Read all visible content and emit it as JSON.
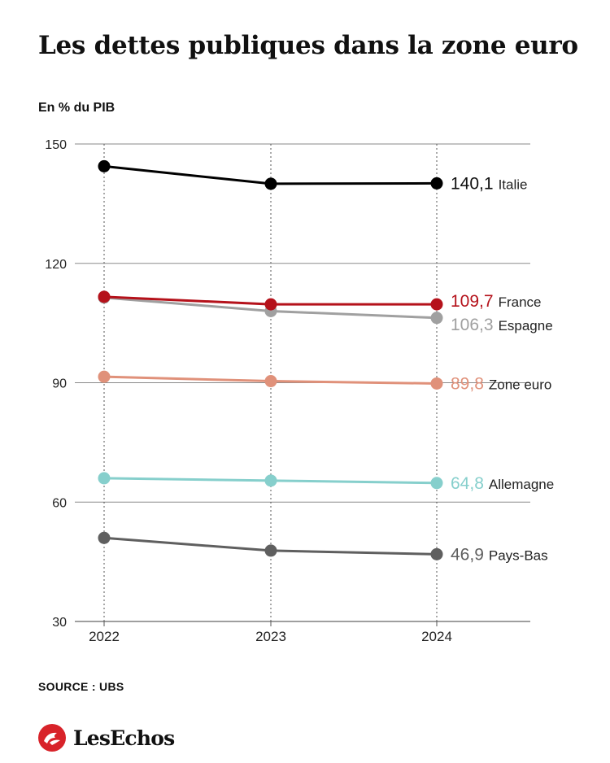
{
  "title": "Les dettes publiques dans la zone euro",
  "unit_label": "En % du PIB",
  "source": "SOURCE : UBS",
  "brand": {
    "name": "LesEchos",
    "logo_icon": "les-echos-logo-icon",
    "logo_color": "#d8232a"
  },
  "chart_data": {
    "type": "line",
    "x": [
      "2022",
      "2023",
      "2024"
    ],
    "ylim": [
      30,
      150
    ],
    "yticks": [
      30,
      60,
      90,
      120,
      150
    ],
    "grid": true,
    "series": [
      {
        "name": "Italie",
        "values": [
          144.4,
          140.0,
          140.1
        ],
        "end_label": "140,1",
        "color": "#000000"
      },
      {
        "name": "France",
        "values": [
          111.6,
          109.7,
          109.7
        ],
        "end_label": "109,7",
        "color": "#b5121b"
      },
      {
        "name": "Espagne",
        "values": [
          111.4,
          108.0,
          106.3
        ],
        "end_label": "106,3",
        "color": "#a0a0a0"
      },
      {
        "name": "Zone euro",
        "values": [
          91.5,
          90.4,
          89.8
        ],
        "end_label": "89,8",
        "color": "#e0917a"
      },
      {
        "name": "Allemagne",
        "values": [
          66.0,
          65.4,
          64.8
        ],
        "end_label": "64,8",
        "color": "#86cfcc"
      },
      {
        "name": "Pays-Bas",
        "values": [
          51.0,
          47.8,
          46.9
        ],
        "end_label": "46,9",
        "color": "#5f5f5f"
      }
    ]
  }
}
